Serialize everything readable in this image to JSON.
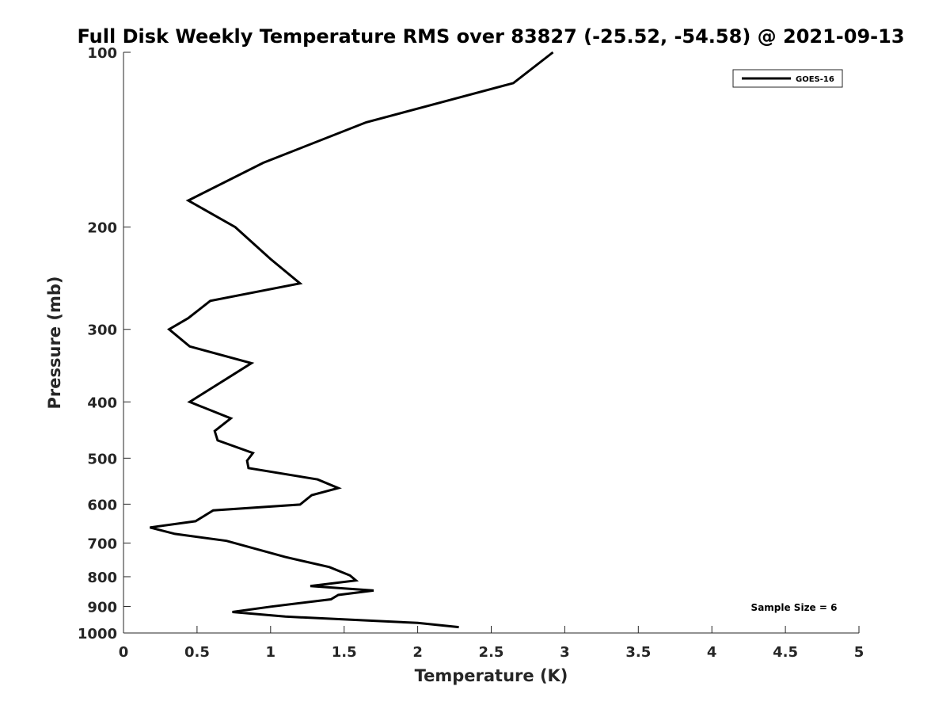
{
  "chart_data": {
    "type": "line",
    "title": "Full Disk Weekly Temperature RMS over 83827 (-25.52, -54.58) @ 2021-09-13",
    "xlabel": "Temperature (K)",
    "ylabel": "Pressure (mb)",
    "xlim": [
      0,
      5
    ],
    "ylim": [
      1000,
      100
    ],
    "yscale": "log",
    "y_reversed": true,
    "xticks": [
      "0",
      "0.5",
      "1",
      "1.5",
      "2",
      "2.5",
      "3",
      "3.5",
      "4",
      "4.5",
      "5"
    ],
    "yticks": [
      "100",
      "200",
      "300",
      "400",
      "500",
      "600",
      "700",
      "800",
      "900",
      "1000"
    ],
    "grid": false,
    "legend_position": "top-right",
    "annotation": "Sample Size = 6",
    "series": [
      {
        "name": "GOES-16",
        "color": "#000000",
        "points": [
          [
            2.28,
            977
          ],
          [
            2.0,
            961
          ],
          [
            1.1,
            937
          ],
          [
            0.74,
            920
          ],
          [
            1.0,
            901
          ],
          [
            1.41,
            875
          ],
          [
            1.46,
            860
          ],
          [
            1.7,
            845
          ],
          [
            1.27,
            830
          ],
          [
            1.58,
            812
          ],
          [
            1.54,
            796
          ],
          [
            1.4,
            770
          ],
          [
            1.1,
            740
          ],
          [
            0.7,
            694
          ],
          [
            0.35,
            675
          ],
          [
            0.18,
            658
          ],
          [
            0.49,
            642
          ],
          [
            0.61,
            615
          ],
          [
            1.2,
            601
          ],
          [
            1.28,
            579
          ],
          [
            1.46,
            563
          ],
          [
            1.32,
            544
          ],
          [
            0.85,
            520
          ],
          [
            0.84,
            505
          ],
          [
            0.88,
            490
          ],
          [
            0.64,
            466
          ],
          [
            0.62,
            449
          ],
          [
            0.73,
            427
          ],
          [
            0.45,
            400
          ],
          [
            0.59,
            380
          ],
          [
            0.7,
            365
          ],
          [
            0.87,
            343
          ],
          [
            0.45,
            321
          ],
          [
            0.31,
            300
          ],
          [
            0.44,
            287
          ],
          [
            0.59,
            268
          ],
          [
            1.2,
            250
          ],
          [
            1.0,
            227
          ],
          [
            0.76,
            200
          ],
          [
            0.44,
            180
          ],
          [
            0.95,
            155
          ],
          [
            1.65,
            132
          ],
          [
            2.65,
            113
          ],
          [
            2.92,
            100
          ]
        ]
      }
    ]
  }
}
